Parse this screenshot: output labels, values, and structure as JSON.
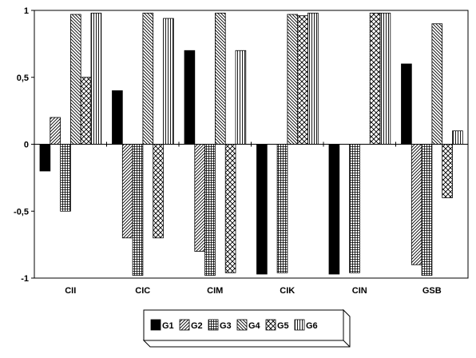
{
  "chart_data": {
    "type": "bar",
    "categories": [
      "CII",
      "CIC",
      "CIM",
      "CIK",
      "CIN",
      "GSB"
    ],
    "series": [
      {
        "name": "G1",
        "values": [
          -0.2,
          0.4,
          0.7,
          -0.97,
          -0.97,
          0.6
        ],
        "pattern": "solid"
      },
      {
        "name": "G2",
        "values": [
          0.2,
          -0.7,
          -0.8,
          null,
          null,
          -0.9
        ],
        "pattern": "diag-right"
      },
      {
        "name": "G3",
        "values": [
          -0.5,
          -0.98,
          -0.98,
          -0.96,
          -0.96,
          -0.98
        ],
        "pattern": "grid"
      },
      {
        "name": "G4",
        "values": [
          0.97,
          0.98,
          0.98,
          0.97,
          null,
          0.9
        ],
        "pattern": "diag-left"
      },
      {
        "name": "G5",
        "values": [
          0.5,
          -0.7,
          -0.96,
          0.96,
          0.98,
          -0.4
        ],
        "pattern": "crosshatch"
      },
      {
        "name": "G6",
        "values": [
          0.98,
          0.94,
          0.7,
          0.98,
          0.98,
          0.1
        ],
        "pattern": "vertical"
      }
    ],
    "ylim": [
      -1,
      1
    ],
    "yticks": [
      -1,
      -0.5,
      0,
      0.5,
      1
    ],
    "ytick_labels": [
      "-1",
      "-0,5",
      "0",
      "0,5",
      "1"
    ],
    "grid": false,
    "legend_position": "bottom"
  }
}
